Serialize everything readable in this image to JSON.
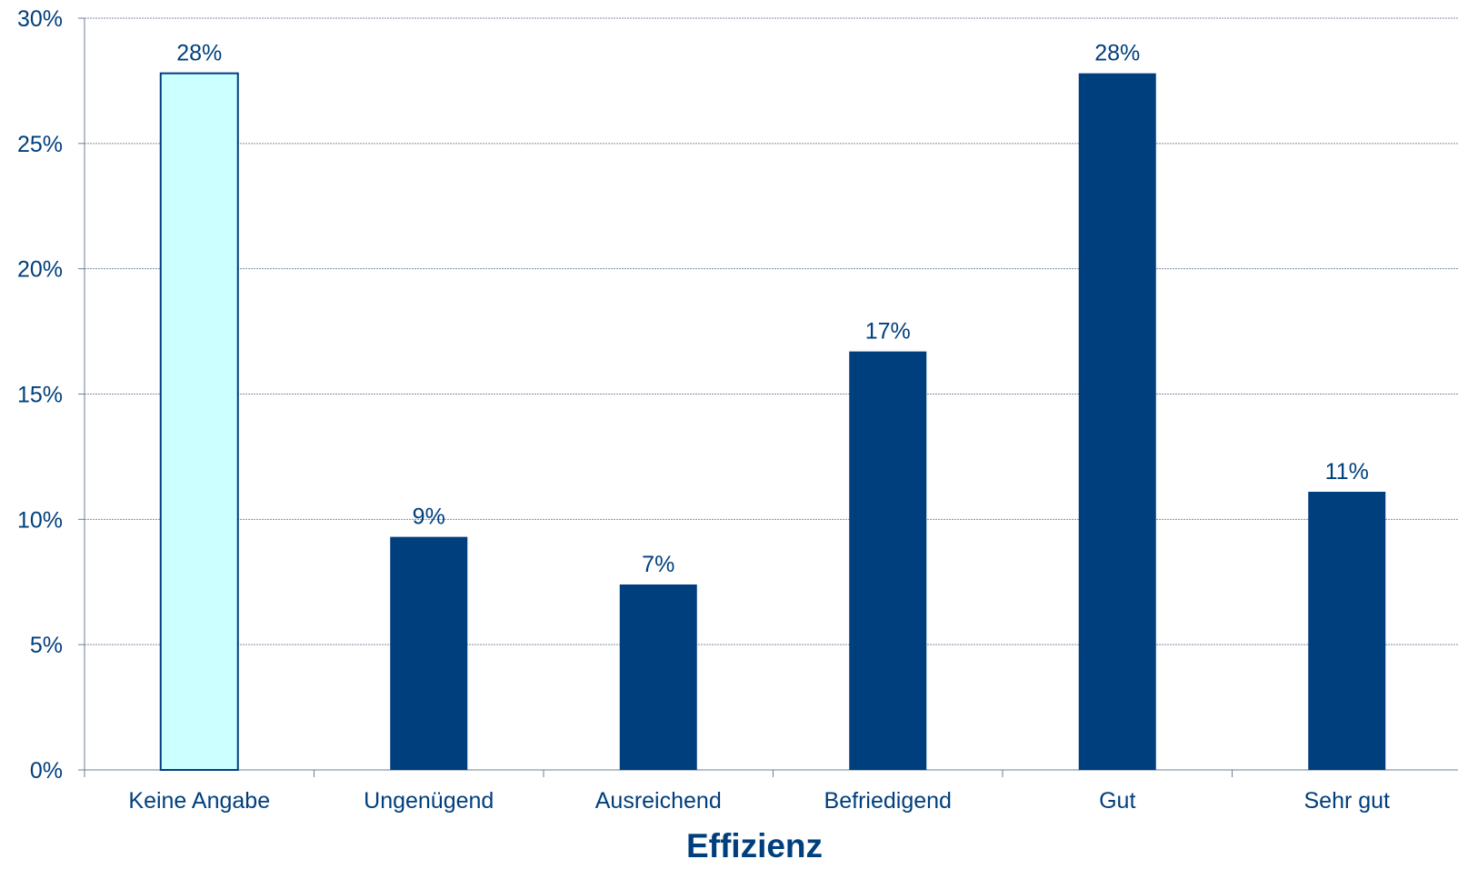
{
  "chart_data": {
    "type": "bar",
    "title": "",
    "xlabel": "Effizienz",
    "ylabel": "",
    "ylim": [
      0,
      30
    ],
    "y_ticks": [
      "0%",
      "5%",
      "10%",
      "15%",
      "20%",
      "25%",
      "30%"
    ],
    "y_tick_values": [
      0,
      5,
      10,
      15,
      20,
      25,
      30
    ],
    "grid": true,
    "legend": "none",
    "categories": [
      "Keine Angabe",
      "Ungenügend",
      "Ausreichend",
      "Befriedigend",
      "Gut",
      "Sehr gut"
    ],
    "values": [
      27.8,
      9.3,
      7.4,
      16.7,
      27.8,
      11.1
    ],
    "data_labels": [
      "28%",
      "9%",
      "7%",
      "17%",
      "28%",
      "11%"
    ],
    "colors": {
      "highlight_fill": "#ccffff",
      "highlight_stroke": "#003f7d",
      "bar_fill": "#003f7d",
      "text": "#003f7d",
      "grid": "#7f8fa8",
      "axis": "#6f7f99"
    },
    "bar_highlight": [
      true,
      false,
      false,
      false,
      false,
      false
    ]
  }
}
